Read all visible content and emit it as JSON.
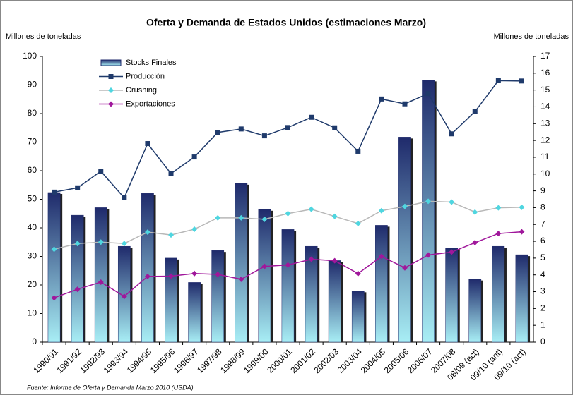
{
  "chart_data": {
    "type": "bar",
    "title": "Oferta y Demanda de Estados Unidos (estimaciones Marzo)",
    "y_label": "Millones de toneladas",
    "y2_label": "Millones de toneladas",
    "source": "Fuente: Informe de Oferta y Demanda Marzo 2010 (USDA)",
    "categories": [
      "1990/91",
      "1991/92",
      "1992/93",
      "1993/94",
      "1994/95",
      "1995/96",
      "1996/97",
      "1997/98",
      "1998/99",
      "1999/00",
      "2000/01",
      "2001/02",
      "2002/03",
      "2003/04",
      "2004/05",
      "2005/06",
      "2006/07",
      "2007/08",
      "08/09 (act)",
      "09/10 (ant)",
      "09/10 (act)"
    ],
    "ylim": [
      0,
      100
    ],
    "yticks": [
      0,
      10,
      20,
      30,
      40,
      50,
      60,
      70,
      80,
      90,
      100
    ],
    "y2lim": [
      0,
      17
    ],
    "y2ticks": [
      0,
      1,
      2,
      3,
      4,
      5,
      6,
      7,
      8,
      9,
      10,
      11,
      12,
      13,
      14,
      15,
      16,
      17
    ],
    "series": [
      {
        "name": "Stocks Finales",
        "type": "bar",
        "axis": "y2",
        "color": "#1f2a6b",
        "values": [
          8.9,
          7.55,
          8.0,
          5.7,
          8.85,
          5.0,
          3.55,
          5.45,
          9.45,
          7.9,
          6.7,
          5.7,
          4.85,
          3.05,
          6.95,
          12.2,
          15.6,
          5.6,
          3.75,
          5.7,
          5.2
        ]
      },
      {
        "name": "Producción",
        "type": "line",
        "marker": "square",
        "color": "#1f3a6b",
        "line_color": "#1f3a6b",
        "values": [
          52.5,
          54,
          59.8,
          50.5,
          69.5,
          59,
          64.8,
          73.4,
          74.6,
          72.2,
          75.1,
          78.7,
          75,
          66.8,
          85.1,
          83.4,
          87,
          72.9,
          80.7,
          91.5,
          91.4
        ]
      },
      {
        "name": "Crushing",
        "type": "line",
        "marker": "diamond",
        "color": "#4fd6e0",
        "line_color": "#b8b8b8",
        "values": [
          32.5,
          34.5,
          35,
          34.5,
          38.5,
          37.5,
          39.5,
          43.5,
          43.5,
          43,
          45,
          46.5,
          44,
          41.5,
          46,
          47.5,
          49.3,
          49,
          45.5,
          47,
          47.2
        ]
      },
      {
        "name": "Exportaciones",
        "type": "line",
        "marker": "diamond",
        "color": "#a0179b",
        "line_color": "#a0179b",
        "values": [
          15.5,
          18.5,
          21,
          16,
          23,
          23.1,
          24,
          23.7,
          22,
          26.5,
          27,
          29,
          28.5,
          24,
          30,
          26,
          30.5,
          31.5,
          34.8,
          38,
          38.6
        ]
      }
    ]
  }
}
